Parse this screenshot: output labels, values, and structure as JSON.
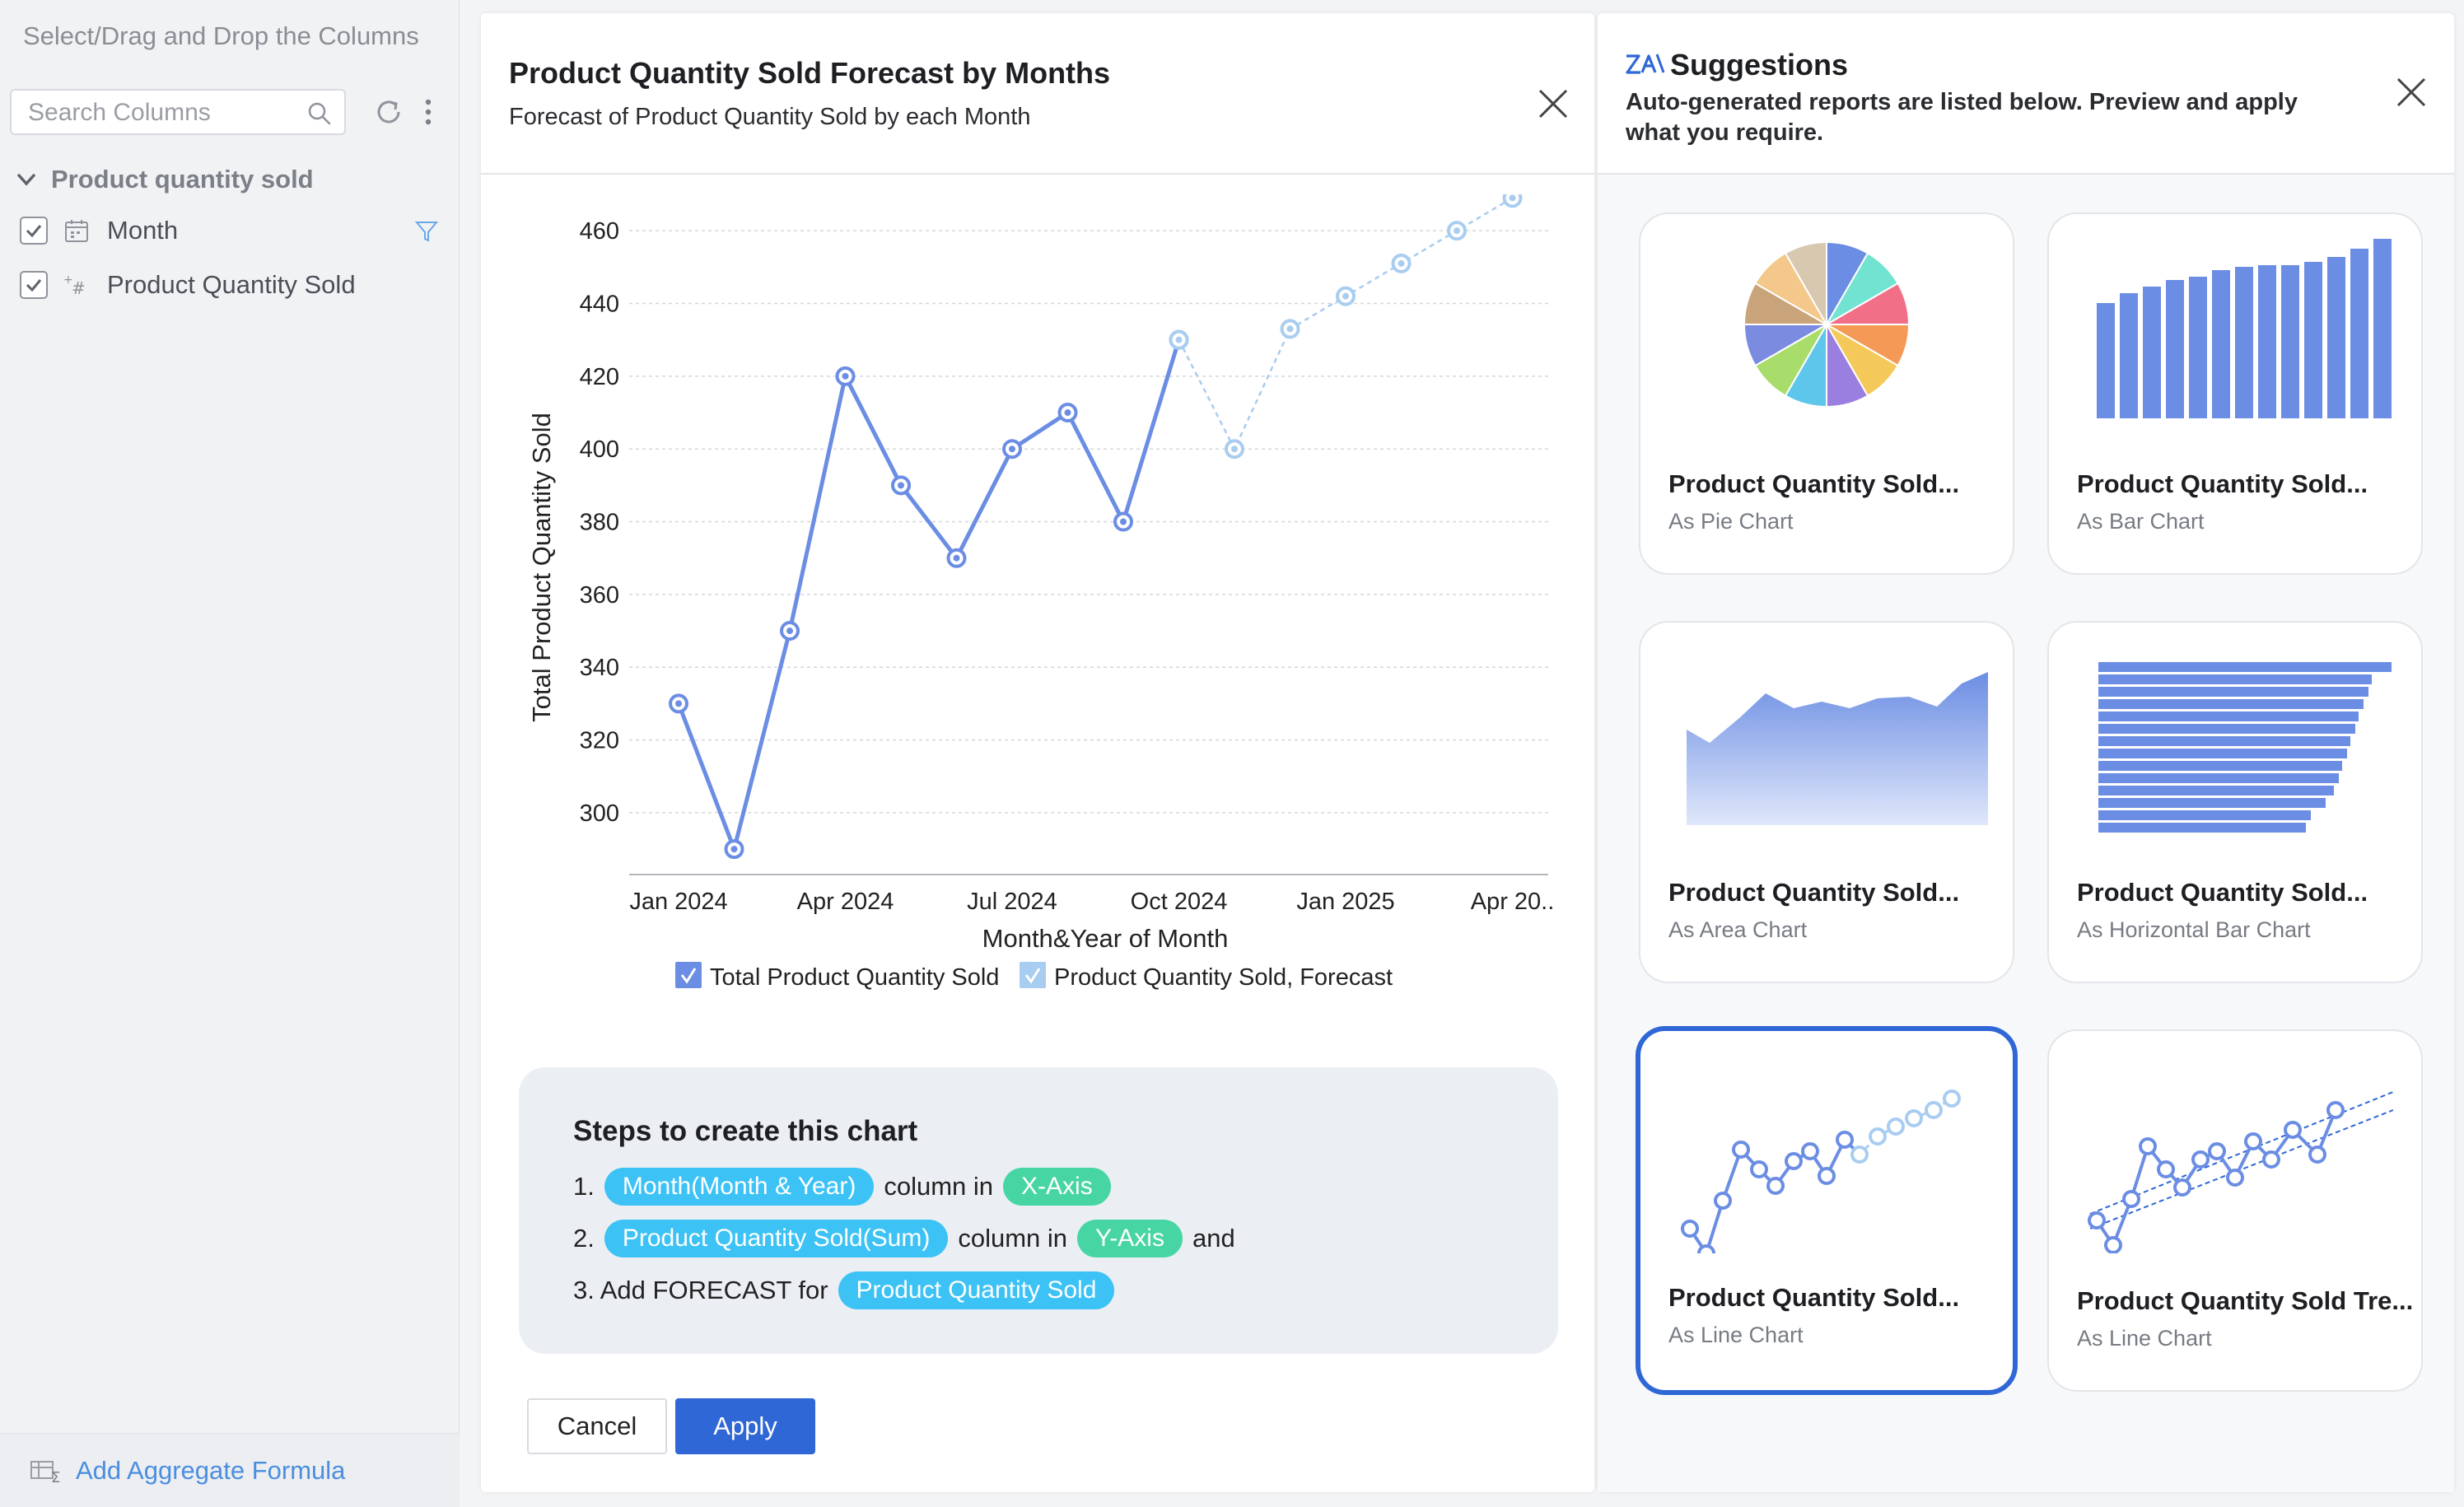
{
  "left_panel": {
    "title": "Select/Drag and Drop the Columns",
    "search_placeholder": "Search Columns",
    "group_label": "Product quantity sold",
    "columns": [
      {
        "label": "Month",
        "type_icon": "calendar-icon",
        "checked": true
      },
      {
        "label": "Product Quantity Sold",
        "type_icon": "number-icon",
        "checked": true
      }
    ],
    "add_formula_label": "Add Aggregate Formula"
  },
  "center": {
    "title": "Product Quantity Sold Forecast by Months",
    "subtitle": "Forecast of Product Quantity Sold by each Month",
    "steps_title": "Steps to create this chart",
    "step1": {
      "num": "1.",
      "pill1": "Month(Month & Year)",
      "text": "column in",
      "pill2": "X-Axis"
    },
    "step2": {
      "num": "2.",
      "pill1": "Product Quantity Sold(Sum)",
      "text": "column in",
      "pill2": "Y-Axis",
      "tail": "and"
    },
    "step3": {
      "text": "3. Add FORECAST for",
      "pill1": "Product Quantity Sold"
    },
    "cancel_label": "Cancel",
    "apply_label": "Apply"
  },
  "chart_data": {
    "type": "line",
    "title": "",
    "xlabel": "Month&Year of Month",
    "ylabel": "Total Product Quantity Sold",
    "ylim": [
      283,
      470
    ],
    "yticks": [
      300,
      320,
      340,
      360,
      380,
      400,
      420,
      440,
      460
    ],
    "xticks": [
      "Jan 2024",
      "Apr 2024",
      "Jul 2024",
      "Oct 2024",
      "Jan 2025",
      "Apr 20.."
    ],
    "x": [
      "Jan 2024",
      "Feb 2024",
      "Mar 2024",
      "Apr 2024",
      "May 2024",
      "Jun 2024",
      "Jul 2024",
      "Aug 2024",
      "Sep 2024",
      "Oct 2024",
      "Nov 2024",
      "Dec 2024",
      "Jan 2025",
      "Feb 2025",
      "Mar 2025",
      "Apr 2025"
    ],
    "series": [
      {
        "name": "Total Product Quantity Sold",
        "color": "#6b8de3",
        "values": [
          330,
          290,
          350,
          420,
          390,
          370,
          400,
          410,
          380,
          430,
          null,
          null,
          null,
          null,
          null,
          null
        ]
      },
      {
        "name": "Product Quantity Sold, Forecast",
        "color": "#a8cdf0",
        "values": [
          null,
          null,
          null,
          null,
          null,
          null,
          null,
          null,
          null,
          430,
          400,
          433,
          442,
          451,
          460,
          469
        ]
      }
    ],
    "grid": true,
    "legend_position": "bottom"
  },
  "right_panel": {
    "title": "Suggestions",
    "description": "Auto-generated reports are listed below. Preview and apply what you require.",
    "cards": [
      {
        "title": "Product Quantity Sold...",
        "subtitle": "As Pie Chart"
      },
      {
        "title": "Product Quantity Sold...",
        "subtitle": "As Bar Chart"
      },
      {
        "title": "Product Quantity Sold...",
        "subtitle": "As Area Chart"
      },
      {
        "title": "Product Quantity Sold...",
        "subtitle": "As Horizontal Bar Chart"
      },
      {
        "title": "Product Quantity Sold...",
        "subtitle": "As Line Chart",
        "selected": true
      },
      {
        "title": "Product Quantity Sold Tre...",
        "subtitle": "As Line Chart"
      }
    ]
  },
  "colors": {
    "accent": "#2f67d6",
    "series_main": "#6b8de3",
    "series_forecast": "#a8cdf0",
    "pill_blue": "#3dc2f5",
    "pill_green": "#47d6a3"
  }
}
